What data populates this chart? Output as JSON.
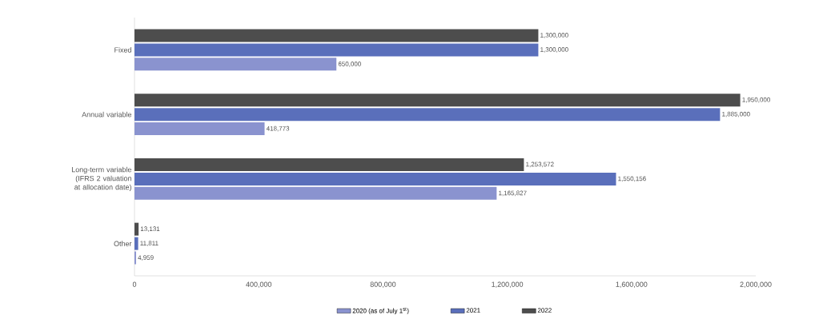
{
  "chart_data": {
    "type": "bar",
    "orientation": "horizontal",
    "legend": "bottom",
    "categories": [
      "Fixed",
      "Annual variable",
      "Long-term variable (IFRS 2 valuation at allocation date)",
      "Other"
    ],
    "xlim": [
      0,
      2000000
    ],
    "xticks": [
      0,
      {
        "value": 400000,
        "label": "400,000"
      },
      {
        "value": 800000,
        "label": "800,000"
      },
      {
        "value": 1200000,
        "label": "1,200,000"
      },
      {
        "value": 1600000,
        "label": "1,600,000"
      },
      {
        "value": 2000000,
        "label": "2,000,000"
      }
    ],
    "series": [
      {
        "name": "2020 (as of July 1$^{st}$)",
        "color": "#8a93cf",
        "values": [
          650000,
          418773,
          1165827,
          4959
        ],
        "value_labels": [
          "650,000",
          "418,773",
          "1,165,827",
          "4,959"
        ]
      },
      {
        "name": "2021",
        "color": "#5a6fbb",
        "values": [
          1300000,
          1885000,
          1550156,
          11811
        ],
        "value_labels": [
          "1,300,000",
          "1,885,000",
          "1,550,156",
          "11,811"
        ]
      },
      {
        "name": "2022",
        "color": "#4d4d4d",
        "values": [
          1300000,
          1950000,
          1253572,
          13131
        ],
        "value_labels": [
          "1,300,000",
          "1,950,000",
          "1,253,572",
          "13,131"
        ]
      }
    ]
  }
}
